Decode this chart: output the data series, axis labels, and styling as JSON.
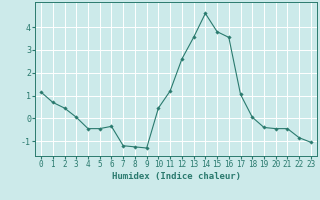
{
  "x": [
    0,
    1,
    2,
    3,
    4,
    5,
    6,
    7,
    8,
    9,
    10,
    11,
    12,
    13,
    14,
    15,
    16,
    17,
    18,
    19,
    20,
    21,
    22,
    23
  ],
  "y": [
    1.15,
    0.7,
    0.45,
    0.05,
    -0.45,
    -0.45,
    -0.35,
    -1.2,
    -1.25,
    -1.3,
    0.45,
    1.2,
    2.6,
    3.55,
    4.6,
    3.8,
    3.55,
    1.05,
    0.05,
    -0.4,
    -0.45,
    -0.45,
    -0.85,
    -1.05
  ],
  "line_color": "#2a7a6e",
  "marker": "D",
  "markersize": 1.8,
  "linewidth": 0.8,
  "xlabel": "Humidex (Indice chaleur)",
  "xlim": [
    -0.5,
    23.5
  ],
  "ylim": [
    -1.65,
    5.1
  ],
  "yticks": [
    -1,
    0,
    1,
    2,
    3,
    4
  ],
  "xticks": [
    0,
    1,
    2,
    3,
    4,
    5,
    6,
    7,
    8,
    9,
    10,
    11,
    12,
    13,
    14,
    15,
    16,
    17,
    18,
    19,
    20,
    21,
    22,
    23
  ],
  "bg_color": "#cceaea",
  "grid_color": "#ffffff",
  "tick_color": "#2a7a6e",
  "label_color": "#2a7a6e",
  "xlabel_fontsize": 6.5,
  "ytick_fontsize": 6,
  "xtick_fontsize": 5.5
}
